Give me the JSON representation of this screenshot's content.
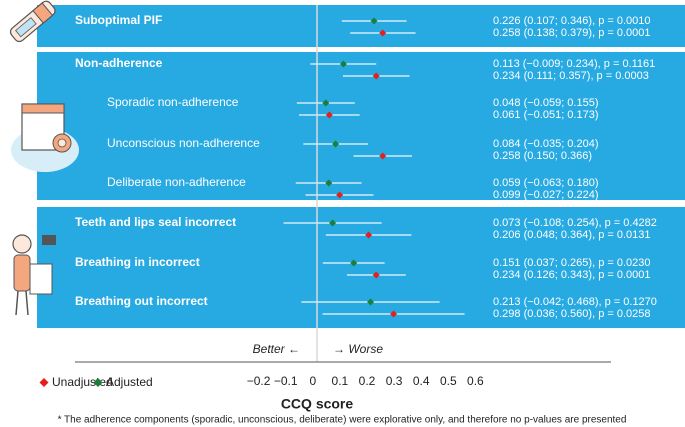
{
  "chart_data": {
    "type": "forest",
    "categories": [
      "Suboptimal PIF",
      "Non-adherence",
      "Sporadic non-adherence",
      "Unconscious non-adherence",
      "Deliberate non-adherence",
      "Teeth and lips seal incorrect",
      "Breathing in incorrect",
      "Breathing out incorrect"
    ],
    "series": [
      {
        "name": "Unadjusted",
        "color": "#e3201b",
        "values": [
          0.258,
          0.234,
          0.061,
          0.258,
          0.099,
          0.206,
          0.234,
          0.298
        ],
        "lower": [
          0.138,
          0.111,
          -0.051,
          0.15,
          -0.027,
          0.048,
          0.126,
          0.036
        ],
        "upper": [
          0.379,
          0.357,
          0.173,
          0.366,
          0.224,
          0.364,
          0.343,
          0.56
        ],
        "value_labels": [
          "0.258 (0.138; 0.379), p = 0.0001",
          "0.234 (0.111; 0.357), p = 0.0003",
          "0.061 (−0.051; 0.173)",
          "0.258 (0.150; 0.366)",
          "0.099 (−0.027; 0.224)",
          "0.206 (0.048; 0.364), p = 0.0131",
          "0.234 (0.126; 0.343), p = 0.0001",
          "0.298 (0.036; 0.560), p = 0.0258"
        ]
      },
      {
        "name": "Adjusted",
        "color": "#1b7f38",
        "values": [
          0.226,
          0.113,
          0.048,
          0.084,
          0.059,
          0.073,
          0.151,
          0.213
        ],
        "lower": [
          0.107,
          -0.009,
          -0.059,
          -0.035,
          -0.063,
          -0.108,
          0.037,
          -0.042
        ],
        "upper": [
          0.346,
          0.234,
          0.155,
          0.204,
          0.18,
          0.254,
          0.265,
          0.468
        ],
        "value_labels": [
          "0.226 (0.107; 0.346), p = 0.0010",
          "0.113 (−0.009; 0.234), p = 0.1161",
          "0.048 (−0.059; 0.155)",
          "0.084 (−0.035; 0.204)",
          "0.059 (−0.063; 0.180)",
          "0.073 (−0.108; 0.254), p = 0.4282",
          "0.151 (0.037; 0.265), p = 0.0230",
          "0.213 (−0.042; 0.468), p = 0.1270"
        ]
      }
    ],
    "xlim": [
      -0.2,
      0.6
    ],
    "xticks": [
      {
        "value": -0.2,
        "label": "−0.2"
      },
      {
        "value": -0.1,
        "label": "−0.1"
      },
      0,
      0.1,
      0.2,
      0.3,
      0.4,
      0.5,
      0.6
    ],
    "xlabel": "CCQ score",
    "better_label": "Better ←",
    "worse_label": "→ Worse",
    "footnote": "* The adherence components (sporadic, unconscious, deliberate) were explorative only, and therefore no p-values are presented"
  }
}
